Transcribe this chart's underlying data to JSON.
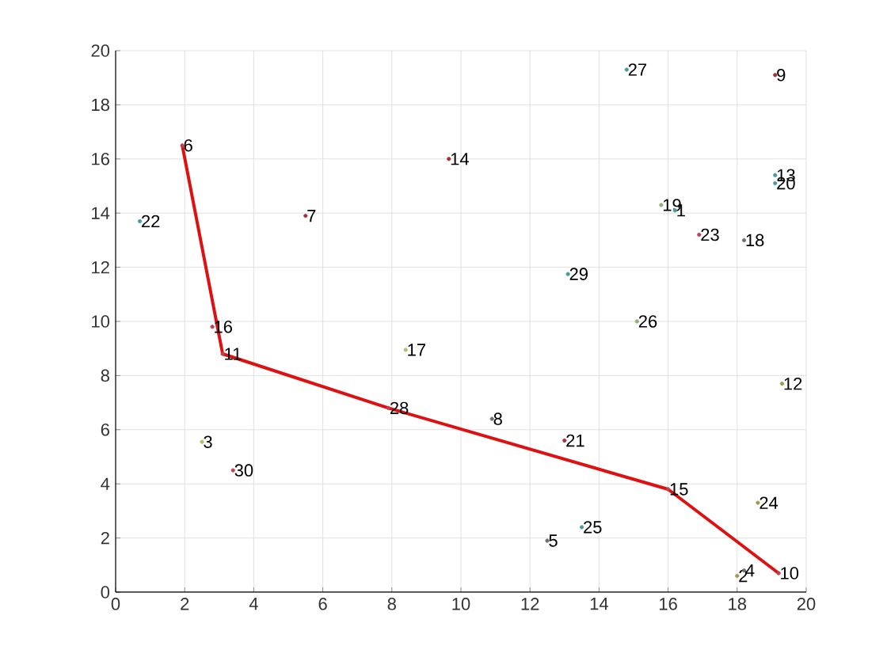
{
  "chart_data": {
    "type": "scatter",
    "grid": true,
    "marker": "circle",
    "xlim": [
      0,
      20
    ],
    "ylim": [
      0,
      20
    ],
    "xticks": [
      0,
      2,
      4,
      6,
      8,
      10,
      12,
      14,
      16,
      18,
      20
    ],
    "yticks": [
      0,
      2,
      4,
      6,
      8,
      10,
      12,
      14,
      16,
      18,
      20
    ],
    "series": [
      {
        "x": [
          16.2,
          18.0,
          2.5,
          18.2,
          12.5,
          1.93,
          5.5,
          10.9,
          19.1,
          19.2,
          3.1,
          19.3,
          19.1,
          9.65,
          16.0,
          2.8,
          8.4,
          18.2,
          15.8,
          19.1,
          13.0,
          0.7,
          16.9,
          18.6,
          13.5,
          15.1,
          14.8,
          7.9,
          13.1,
          3.4
        ],
        "values": [
          14.1,
          0.6,
          5.55,
          0.8,
          1.9,
          16.5,
          13.9,
          6.4,
          19.1,
          0.7,
          8.8,
          7.7,
          15.4,
          16.0,
          3.8,
          9.8,
          8.95,
          13.0,
          14.3,
          15.1,
          5.6,
          13.7,
          13.2,
          3.3,
          2.4,
          10.0,
          19.3,
          6.8,
          11.75,
          4.5
        ],
        "colors": [
          "#4a9a9a",
          "#9a9a50",
          "#b0c070",
          "#707070",
          "#707070",
          "#c04050",
          "#a03040",
          "#707070",
          "#a03040",
          "#c04050",
          "#c04050",
          "#9a9a50",
          "#4a9a9a",
          "#a03040",
          "#c04050",
          "#c04050",
          "#b0c070",
          "#707070",
          "#90b070",
          "#4a9a9a",
          "#a03040",
          "#4a9a9a",
          "#c04050",
          "#9a9a50",
          "#4a9a9a",
          "#90b070",
          "#4a9a9a",
          "#c04050",
          "#4a9a9a",
          "#c04050"
        ]
      },
      {
        "type": "line",
        "color": "#dd1111",
        "line_style": "solid",
        "marker": "none",
        "x": [
          1.93,
          3.1,
          7.9,
          16.0,
          19.2
        ],
        "values": [
          16.5,
          8.8,
          6.8,
          3.8,
          0.7
        ]
      }
    ],
    "annotations": [
      {
        "text": "1",
        "x": 16.2,
        "y": 14.1
      },
      {
        "text": "2",
        "x": 18.0,
        "y": 0.6
      },
      {
        "text": "3",
        "x": 2.5,
        "y": 5.55
      },
      {
        "text": "4",
        "x": 18.2,
        "y": 0.8
      },
      {
        "text": "5",
        "x": 12.5,
        "y": 1.9
      },
      {
        "text": "6",
        "x": 1.93,
        "y": 16.5
      },
      {
        "text": "7",
        "x": 5.5,
        "y": 13.9
      },
      {
        "text": "8",
        "x": 10.9,
        "y": 6.4
      },
      {
        "text": "9",
        "x": 19.1,
        "y": 19.1
      },
      {
        "text": "10",
        "x": 19.2,
        "y": 0.7
      },
      {
        "text": "11",
        "x": 3.1,
        "y": 8.8
      },
      {
        "text": "12",
        "x": 19.3,
        "y": 7.7
      },
      {
        "text": "13",
        "x": 19.1,
        "y": 15.4
      },
      {
        "text": "14",
        "x": 9.65,
        "y": 16.0
      },
      {
        "text": "15",
        "x": 16.0,
        "y": 3.8
      },
      {
        "text": "16",
        "x": 2.8,
        "y": 9.8
      },
      {
        "text": "17",
        "x": 8.4,
        "y": 8.95
      },
      {
        "text": "18",
        "x": 18.2,
        "y": 13.0
      },
      {
        "text": "19",
        "x": 15.8,
        "y": 14.3
      },
      {
        "text": "20",
        "x": 19.1,
        "y": 15.1
      },
      {
        "text": "21",
        "x": 13.0,
        "y": 5.6
      },
      {
        "text": "22",
        "x": 0.7,
        "y": 13.7
      },
      {
        "text": "23",
        "x": 16.9,
        "y": 13.2
      },
      {
        "text": "24",
        "x": 18.6,
        "y": 3.3
      },
      {
        "text": "25",
        "x": 13.5,
        "y": 2.4
      },
      {
        "text": "26",
        "x": 15.1,
        "y": 10.0
      },
      {
        "text": "27",
        "x": 14.8,
        "y": 19.3
      },
      {
        "text": "28",
        "x": 7.9,
        "y": 6.8
      },
      {
        "text": "29",
        "x": 13.1,
        "y": 11.75
      },
      {
        "text": "30",
        "x": 3.4,
        "y": 4.5
      }
    ]
  }
}
